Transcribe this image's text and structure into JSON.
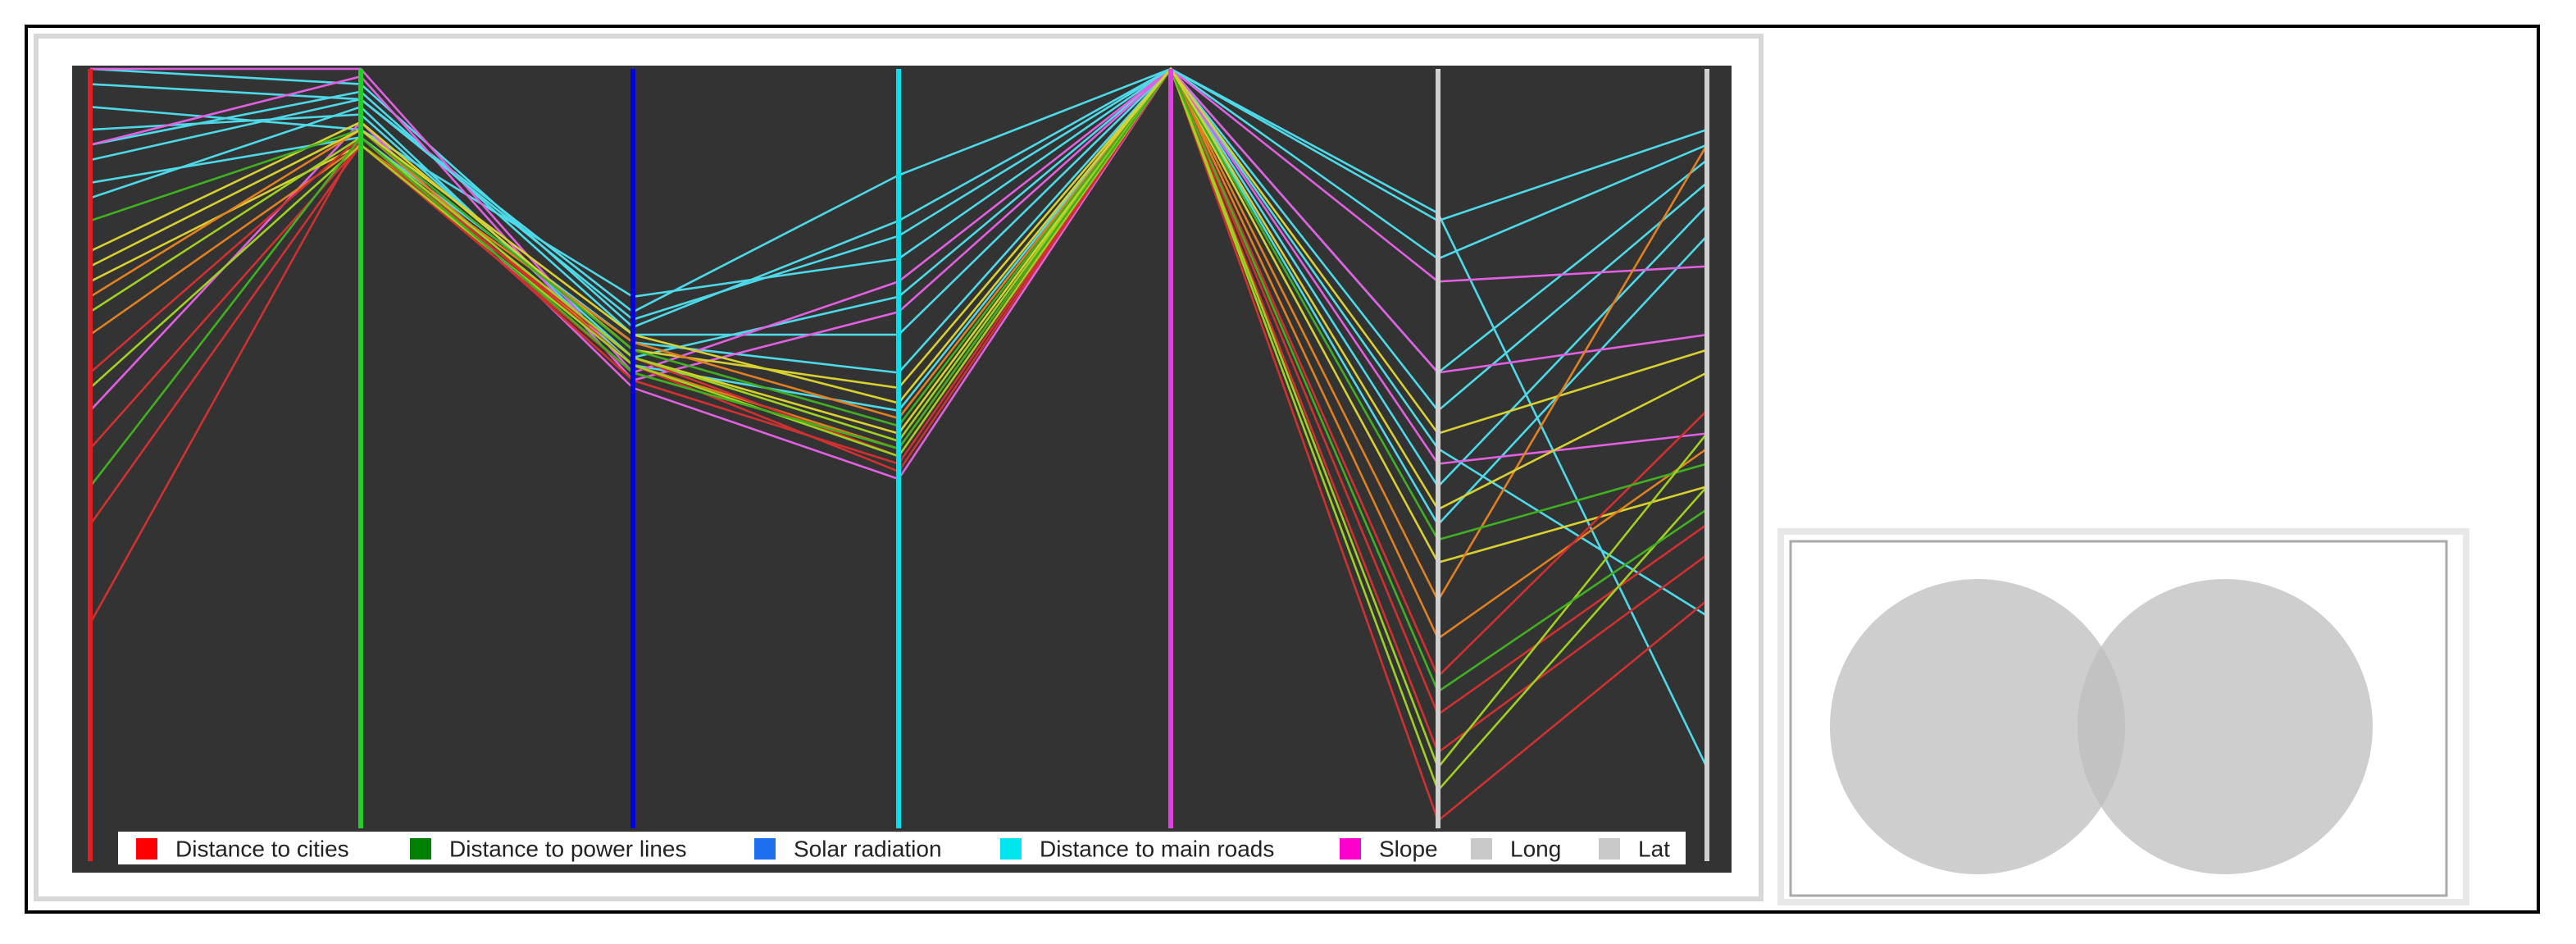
{
  "chart_data": {
    "type": "parallel",
    "axes": [
      {
        "name": "Distance to cities",
        "color": "#e02020",
        "legend_color": "#ff0000"
      },
      {
        "name": "Distance to power lines",
        "color": "#22d022",
        "legend_color": "#008000"
      },
      {
        "name": "Solar radiation",
        "color": "#0000e0",
        "legend_color": "#1e6ef0"
      },
      {
        "name": "Distance to main roads",
        "color": "#00e0f0",
        "legend_color": "#00e5ee"
      },
      {
        "name": "Slope",
        "color": "#e040e0",
        "legend_color": "#ff00cc"
      },
      {
        "name": "Long",
        "color": "#d0d0d0",
        "legend_color": "#c8c8c8"
      },
      {
        "name": "Lat",
        "color": "#d0d0d0",
        "legend_color": "#c8c8c8"
      }
    ],
    "ylim": [
      0,
      100
    ],
    "lines": [
      {
        "color": "#4dd9e8",
        "values": [
          100,
          98,
          66,
          80,
          100,
          81,
          8
        ]
      },
      {
        "color": "#4dd9e8",
        "values": [
          98,
          96,
          68,
          86,
          100,
          75,
          90
        ]
      },
      {
        "color": "#4dd9e8",
        "values": [
          95,
          92,
          70,
          75,
          100,
          60,
          88
        ]
      },
      {
        "color": "#4dd9e8",
        "values": [
          92,
          94,
          62,
          70,
          100,
          55,
          85
        ]
      },
      {
        "color": "#4dd9e8",
        "values": [
          90,
          97,
          65,
          65,
          100,
          50,
          28
        ]
      },
      {
        "color": "#4dd9e8",
        "values": [
          85,
          91,
          64,
          60,
          100,
          45,
          82
        ]
      },
      {
        "color": "#4dd9e8",
        "values": [
          83,
          95,
          61,
          55,
          100,
          40,
          78
        ]
      },
      {
        "color": "#e060e0",
        "values": [
          100,
          100,
          60,
          72,
          100,
          72,
          74
        ]
      },
      {
        "color": "#e060e0",
        "values": [
          90,
          99,
          59,
          68,
          100,
          60,
          65
        ]
      },
      {
        "color": "#e060e0",
        "values": [
          55,
          93,
          58,
          46,
          100,
          48,
          52
        ]
      },
      {
        "color": "#d8d030",
        "values": [
          76,
          93,
          63,
          58,
          100,
          52,
          63
        ]
      },
      {
        "color": "#d8d030",
        "values": [
          72,
          90,
          62,
          52,
          100,
          35,
          45
        ]
      },
      {
        "color": "#e08020",
        "values": [
          70,
          92,
          61,
          50,
          100,
          30,
          90
        ]
      },
      {
        "color": "#e08020",
        "values": [
          65,
          90,
          64,
          54,
          100,
          25,
          50
        ]
      },
      {
        "color": "#d03030",
        "values": [
          60,
          91,
          59,
          48,
          100,
          20,
          55
        ]
      },
      {
        "color": "#d03030",
        "values": [
          50,
          90,
          60,
          50,
          100,
          15,
          40
        ]
      },
      {
        "color": "#d03030",
        "values": [
          40,
          90,
          62,
          49,
          100,
          10,
          36
        ]
      },
      {
        "color": "#d03030",
        "values": [
          27,
          91,
          61,
          47,
          100,
          1,
          30
        ]
      },
      {
        "color": "#40b020",
        "values": [
          80,
          92,
          63,
          53,
          100,
          38,
          48
        ]
      },
      {
        "color": "#a0d020",
        "values": [
          68,
          91,
          62,
          51,
          100,
          8,
          52
        ]
      },
      {
        "color": "#a0d020",
        "values": [
          58,
          90,
          61,
          49,
          100,
          5,
          45
        ]
      },
      {
        "color": "#40b020",
        "values": [
          45,
          91,
          60,
          50,
          100,
          18,
          42
        ]
      },
      {
        "color": "#4dd9e8",
        "values": [
          88,
          96,
          67,
          78,
          100,
          80,
          92
        ]
      },
      {
        "color": "#d8d030",
        "values": [
          74,
          92,
          65,
          56,
          100,
          42,
          60
        ]
      }
    ]
  }
}
